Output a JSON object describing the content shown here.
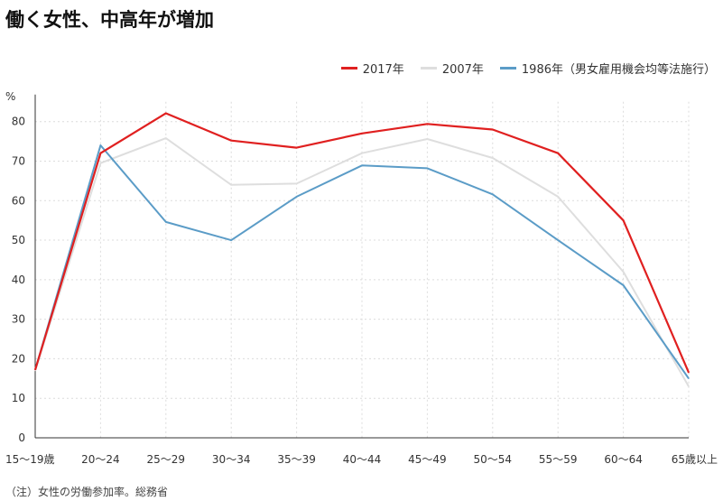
{
  "title": "働く女性、中高年が増加",
  "note": "（注）女性の労働参加率。総務省",
  "chart_data": {
    "type": "line",
    "unit_label": "%",
    "categories": [
      "15〜19歳",
      "20〜24",
      "25〜29",
      "30〜34",
      "35〜39",
      "40〜44",
      "45〜49",
      "50〜54",
      "55〜59",
      "60〜64",
      "65歳以上"
    ],
    "ylim": [
      0,
      85
    ],
    "yticks": [
      0,
      10,
      20,
      30,
      40,
      50,
      60,
      70,
      80
    ],
    "grid": true,
    "legend_position": "top-right",
    "series": [
      {
        "name": "2017年",
        "color": "#e02020",
        "values": [
          17.2,
          72.0,
          82.1,
          75.2,
          73.4,
          77.0,
          79.4,
          78.0,
          72.0,
          55.0,
          16.5
        ]
      },
      {
        "name": "2007年",
        "color": "#dedede",
        "values": [
          17.0,
          69.5,
          75.8,
          64.0,
          64.3,
          72.0,
          75.6,
          70.8,
          61.0,
          42.0,
          13.0
        ]
      },
      {
        "name": "1986年（男女雇用機会均等法施行）",
        "color": "#5b9cc7",
        "values": [
          17.2,
          74.0,
          54.6,
          50.0,
          61.0,
          68.9,
          68.2,
          61.6,
          50.0,
          38.6,
          15.0
        ]
      }
    ]
  }
}
